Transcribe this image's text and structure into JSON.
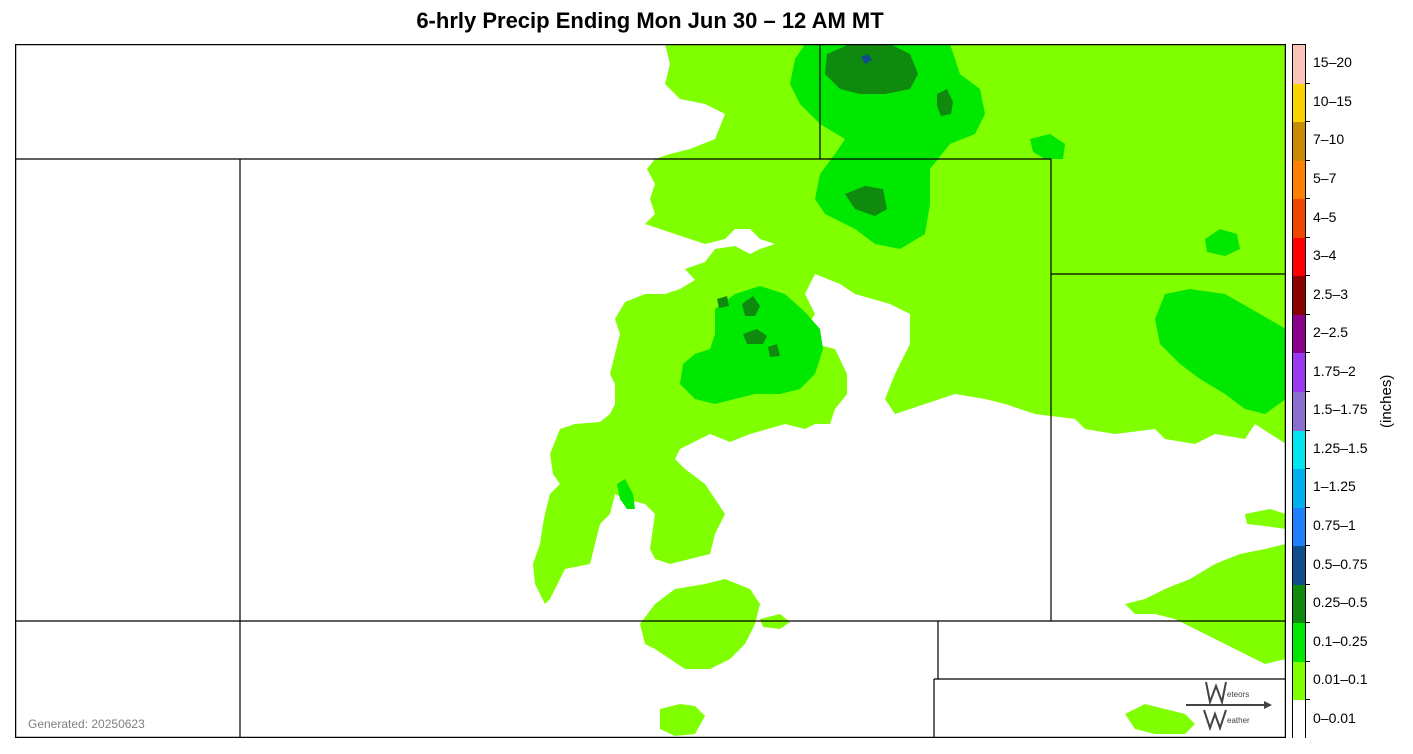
{
  "title": "6-hrly Precip Ending Mon Jun 30 – 12 AM MT",
  "generated": "Generated: 20250623",
  "legend": {
    "units": "(inches)",
    "bins": [
      {
        "label": "15–20",
        "color": "#f9c3b8"
      },
      {
        "label": "10–15",
        "color": "#f9d200"
      },
      {
        "label": "7–10",
        "color": "#c88a00"
      },
      {
        "label": "5–7",
        "color": "#ff7f00"
      },
      {
        "label": "4–5",
        "color": "#ef4600"
      },
      {
        "label": "3–4",
        "color": "#ff0000"
      },
      {
        "label": "2.5–3",
        "color": "#8b0000"
      },
      {
        "label": "2–2.5",
        "color": "#8b008b"
      },
      {
        "label": "1.75–2",
        "color": "#9a3af0"
      },
      {
        "label": "1.5–1.75",
        "color": "#8a6fcc"
      },
      {
        "label": "1.25–1.5",
        "color": "#00e5ee"
      },
      {
        "label": "1–1.25",
        "color": "#00b0ee"
      },
      {
        "label": "0.75–1",
        "color": "#1e7fff"
      },
      {
        "label": "0.5–0.75",
        "color": "#104e8b"
      },
      {
        "label": "0.25–0.5",
        "color": "#0f8a0f"
      },
      {
        "label": "0.1–0.25",
        "color": "#00e800"
      },
      {
        "label": "0.01–0.1",
        "color": "#80ff00"
      },
      {
        "label": "0–0.01",
        "color": "#ffffff"
      }
    ]
  },
  "logo": {
    "line1": "eteors",
    "line2": "eather"
  },
  "colors": {
    "light_green": "#80ff00",
    "green": "#00e800",
    "dark_green": "#0f8a0f",
    "navy": "#104e8b",
    "border": "#000000"
  }
}
